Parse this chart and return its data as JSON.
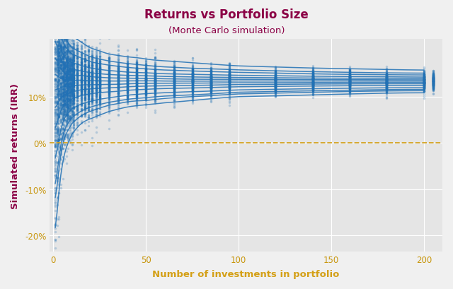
{
  "title": "Returns vs Portfolio Size",
  "subtitle": "(Monte Carlo simulation)",
  "xlabel": "Number of investments in portfolio",
  "ylabel": "Simulated returns (IRR)",
  "title_color": "#8B0045",
  "axis_label_color_x": "#D4A017",
  "axis_label_color_y": "#8B0045",
  "tick_color": "#C8960C",
  "bg_color": "#E5E5E5",
  "fig_bg_color": "#F0F0F0",
  "xlim": [
    -2,
    210
  ],
  "ylim": [
    -0.235,
    0.225
  ],
  "zero_line_color": "#D4A017",
  "dot_color": "#2171B5",
  "x_ticks": [
    0,
    50,
    100,
    150,
    200
  ],
  "y_ticks": [
    -0.2,
    -0.1,
    0.0,
    0.1
  ],
  "y_tick_labels": [
    "-20%",
    "-10%",
    "0%",
    "10%"
  ],
  "mean_irr": 0.155,
  "std_single": 0.18,
  "min_irr": -0.22,
  "max_irr": 0.205
}
